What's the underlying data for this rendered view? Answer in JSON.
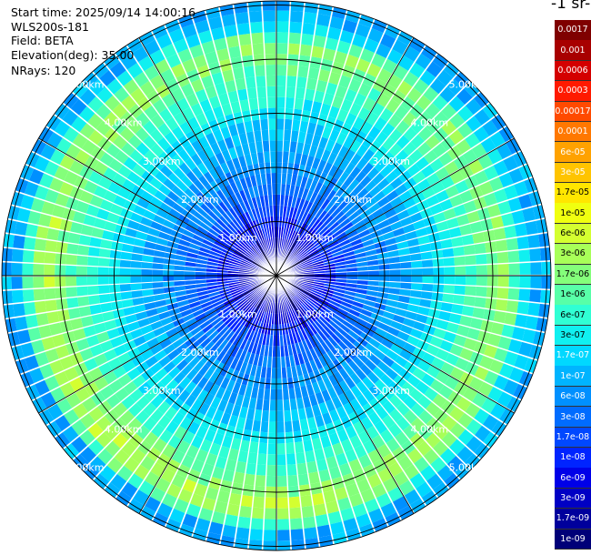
{
  "header": {
    "start_time": "Start time: 2025/09/14 14:00:16",
    "instrument": "WLS200s-181",
    "field": "Field: BETA",
    "elevation": "Elevation(deg): 35.00",
    "nrays": "NRays: 120"
  },
  "colorbar": {
    "title": "-1 sr-",
    "labels": [
      "0.0017",
      "0.001",
      "0.0006",
      "0.0003",
      "0.00017",
      "0.0001",
      "6e-05",
      "3e-05",
      "1.7e-05",
      "1e-05",
      "6e-06",
      "3e-06",
      "1.7e-06",
      "1e-06",
      "6e-07",
      "3e-07",
      "1.7e-07",
      "1e-07",
      "6e-08",
      "3e-08",
      "1.7e-08",
      "1e-08",
      "6e-09",
      "3e-09",
      "1.7e-09",
      "1e-09"
    ],
    "colors": [
      "#7f0000",
      "#a80000",
      "#d40000",
      "#ff1a00",
      "#ff4a00",
      "#ff7800",
      "#ffa200",
      "#ffc400",
      "#ffe600",
      "#f0ff10",
      "#d4ff30",
      "#a8ff58",
      "#84ff7a",
      "#58ffa8",
      "#30ffd4",
      "#10f0f0",
      "#00d8ff",
      "#00b4ff",
      "#0090ff",
      "#006cff",
      "#0048ff",
      "#0024ff",
      "#0000e8",
      "#0000c4",
      "#00009c",
      "#000078"
    ]
  },
  "chart_data": {
    "type": "heatmap",
    "projection": "polar (PPI scan)",
    "scale": "log",
    "n_rays": 120,
    "range_rings_km": [
      1,
      2,
      3,
      4,
      5,
      6
    ],
    "ring_labels": [
      "1.00km",
      "2.00km",
      "3.00km",
      "4.00km",
      "5.00km"
    ],
    "spoke_angles_deg": [
      0,
      30,
      60,
      90,
      120,
      150,
      180,
      210,
      240,
      270,
      300,
      330
    ],
    "radial_profile_approx": [
      {
        "km": 0.5,
        "beta": 3e-09
      },
      {
        "km": 1.5,
        "beta": 3e-08
      },
      {
        "km": 2.5,
        "beta": 1e-07
      },
      {
        "km": 3.5,
        "beta": 6e-07
      },
      {
        "km": 4.3,
        "beta": 3e-06
      },
      {
        "km": 4.8,
        "beta": 1e-07
      },
      {
        "km": 5.5,
        "beta": 6e-08
      }
    ]
  }
}
